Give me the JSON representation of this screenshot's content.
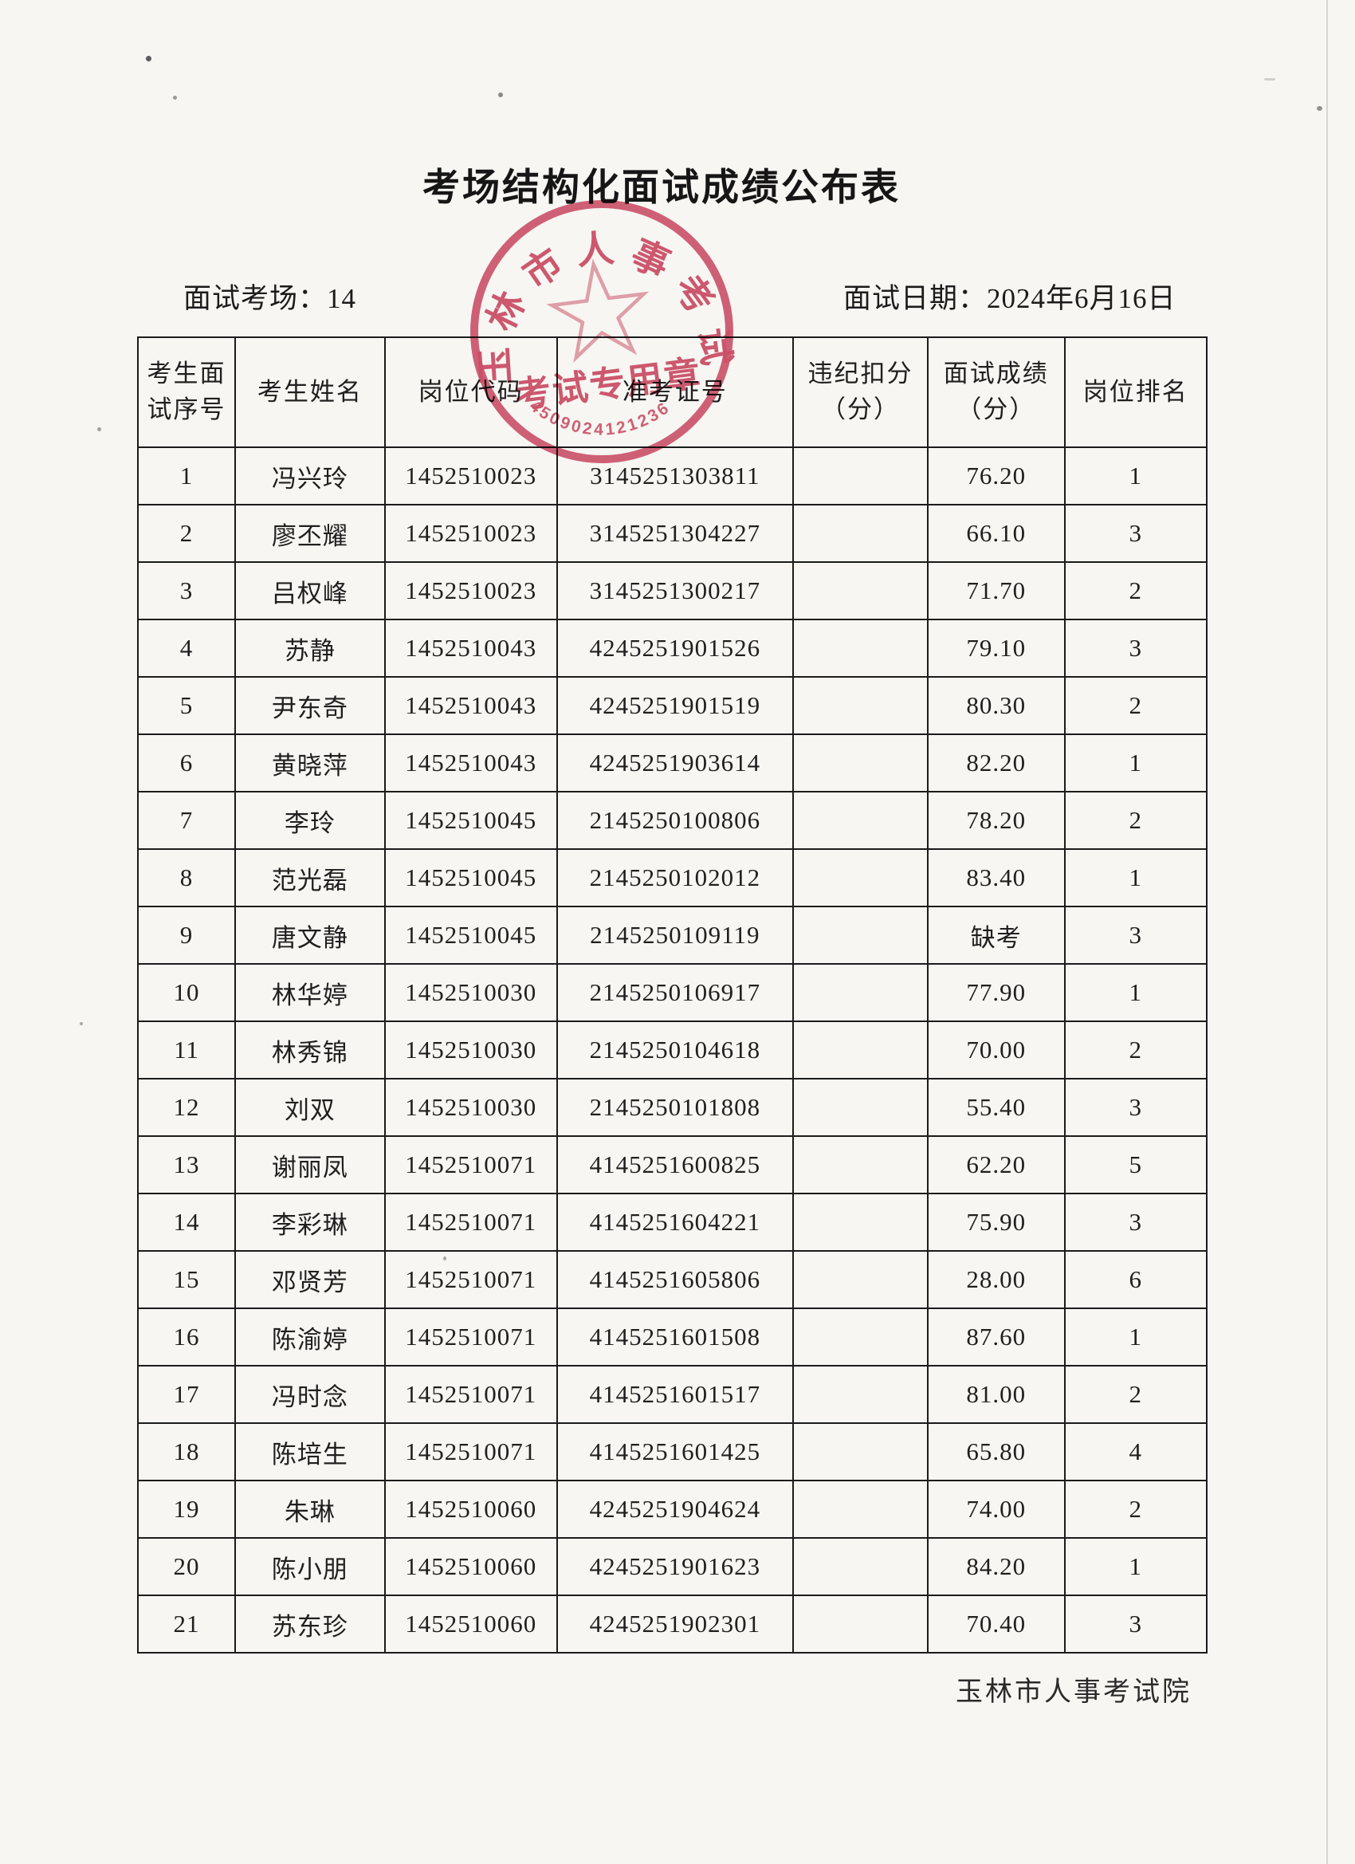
{
  "page": {
    "title": "考场结构化面试成绩公布表",
    "meta_left_label": "面试考场：",
    "meta_left_value": "14",
    "meta_right_label": "面试日期：",
    "meta_right_value": "2024年6月16日",
    "footer": "玉林市人事考试院",
    "paper_color": "#f7f6f2",
    "ink_color": "#1c1c1c"
  },
  "stamp": {
    "ring_text": "玉林市人事考试院",
    "center_text": "考试专用章",
    "code": "4509024121236",
    "color": "#cd4460"
  },
  "table": {
    "headers": [
      {
        "lines": [
          "考生面",
          "试序号"
        ]
      },
      {
        "lines": [
          "考生姓名"
        ]
      },
      {
        "lines": [
          "岗位代码"
        ]
      },
      {
        "lines": [
          "准考证号"
        ]
      },
      {
        "lines": [
          "违纪扣分",
          "（分）"
        ]
      },
      {
        "lines": [
          "面试成绩",
          "（分）"
        ]
      },
      {
        "lines": [
          "岗位排名"
        ]
      }
    ],
    "col_widths_pct": [
      9.1,
      14.0,
      16.1,
      22.1,
      12.6,
      12.8,
      13.3
    ],
    "rows": [
      [
        "1",
        "冯兴玲",
        "1452510023",
        "3145251303811",
        "",
        "76.20",
        "1"
      ],
      [
        "2",
        "廖丕耀",
        "1452510023",
        "3145251304227",
        "",
        "66.10",
        "3"
      ],
      [
        "3",
        "吕权峰",
        "1452510023",
        "3145251300217",
        "",
        "71.70",
        "2"
      ],
      [
        "4",
        "苏静",
        "1452510043",
        "4245251901526",
        "",
        "79.10",
        "3"
      ],
      [
        "5",
        "尹东奇",
        "1452510043",
        "4245251901519",
        "",
        "80.30",
        "2"
      ],
      [
        "6",
        "黄晓萍",
        "1452510043",
        "4245251903614",
        "",
        "82.20",
        "1"
      ],
      [
        "7",
        "李玲",
        "1452510045",
        "2145250100806",
        "",
        "78.20",
        "2"
      ],
      [
        "8",
        "范光磊",
        "1452510045",
        "2145250102012",
        "",
        "83.40",
        "1"
      ],
      [
        "9",
        "唐文静",
        "1452510045",
        "2145250109119",
        "",
        "缺考",
        "3"
      ],
      [
        "10",
        "林华婷",
        "1452510030",
        "2145250106917",
        "",
        "77.90",
        "1"
      ],
      [
        "11",
        "林秀锦",
        "1452510030",
        "2145250104618",
        "",
        "70.00",
        "2"
      ],
      [
        "12",
        "刘双",
        "1452510030",
        "2145250101808",
        "",
        "55.40",
        "3"
      ],
      [
        "13",
        "谢丽凤",
        "1452510071",
        "4145251600825",
        "",
        "62.20",
        "5"
      ],
      [
        "14",
        "李彩琳",
        "1452510071",
        "4145251604221",
        "",
        "75.90",
        "3"
      ],
      [
        "15",
        "邓贤芳",
        "1452510071",
        "4145251605806",
        "",
        "28.00",
        "6"
      ],
      [
        "16",
        "陈渝婷",
        "1452510071",
        "4145251601508",
        "",
        "87.60",
        "1"
      ],
      [
        "17",
        "冯时念",
        "1452510071",
        "4145251601517",
        "",
        "81.00",
        "2"
      ],
      [
        "18",
        "陈培生",
        "1452510071",
        "4145251601425",
        "",
        "65.80",
        "4"
      ],
      [
        "19",
        "朱琳",
        "1452510060",
        "4245251904624",
        "",
        "74.00",
        "2"
      ],
      [
        "20",
        "陈小朋",
        "1452510060",
        "4245251901623",
        "",
        "84.20",
        "1"
      ],
      [
        "21",
        "苏东珍",
        "1452510060",
        "4245251902301",
        "",
        "70.40",
        "3"
      ]
    ]
  }
}
